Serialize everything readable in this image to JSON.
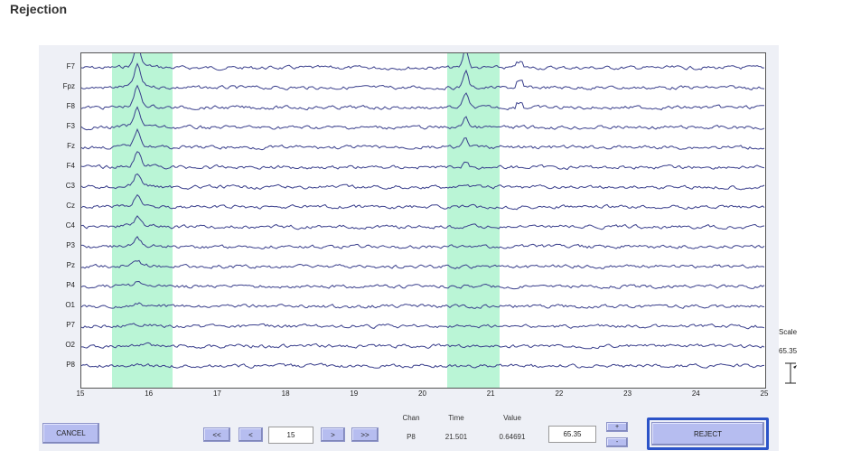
{
  "title": "Rejection",
  "channels": [
    "F7",
    "Fpz",
    "F8",
    "F3",
    "Fz",
    "F4",
    "C3",
    "Cz",
    "C4",
    "P3",
    "Pz",
    "P4",
    "O1",
    "P7",
    "O2",
    "P8"
  ],
  "x_ticks": [
    "15",
    "16",
    "17",
    "18",
    "19",
    "20",
    "21",
    "22",
    "23",
    "24",
    "25"
  ],
  "time_range": [
    15,
    25
  ],
  "highlights": [
    {
      "start": 15.45,
      "end": 16.33,
      "color": "#baf5d6"
    },
    {
      "start": 20.35,
      "end": 21.12,
      "color": "#baf5d6"
    }
  ],
  "trace_color": "#3a3f8c",
  "scale": {
    "label": "Scale",
    "value": "65.35"
  },
  "controls": {
    "cancel_label": "CANCEL",
    "first_label": "<<",
    "prev_label": "<",
    "page_value": "15",
    "next_label": ">",
    "last_label": ">>",
    "chan_header": "Chan",
    "time_header": "Time",
    "value_header": "Value",
    "chan_value": "P8",
    "time_value": "21.501",
    "value_value": "0.64691",
    "scale_value": "65.35",
    "plus_label": "+",
    "minus_label": "-",
    "reject_label": "REJECT"
  }
}
